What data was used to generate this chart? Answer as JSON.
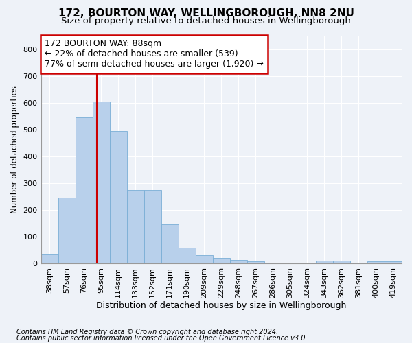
{
  "title1": "172, BOURTON WAY, WELLINGBOROUGH, NN8 2NU",
  "title2": "Size of property relative to detached houses in Wellingborough",
  "xlabel": "Distribution of detached houses by size in Wellingborough",
  "ylabel": "Number of detached properties",
  "footnote1": "Contains HM Land Registry data © Crown copyright and database right 2024.",
  "footnote2": "Contains public sector information licensed under the Open Government Licence v3.0.",
  "bin_labels": [
    "38sqm",
    "57sqm",
    "76sqm",
    "95sqm",
    "114sqm",
    "133sqm",
    "152sqm",
    "171sqm",
    "190sqm",
    "209sqm",
    "229sqm",
    "248sqm",
    "267sqm",
    "286sqm",
    "305sqm",
    "324sqm",
    "343sqm",
    "362sqm",
    "381sqm",
    "400sqm",
    "419sqm"
  ],
  "bar_values": [
    35,
    245,
    545,
    605,
    495,
    275,
    275,
    145,
    60,
    30,
    20,
    13,
    8,
    3,
    3,
    3,
    10,
    10,
    3,
    7,
    7
  ],
  "bar_color": "#b8d0eb",
  "bar_edge_color": "#7aaed6",
  "vline_color": "#cc0000",
  "vline_x_index": 2.74,
  "annotation_line1": "172 BOURTON WAY: 88sqm",
  "annotation_line2": "← 22% of detached houses are smaller (539)",
  "annotation_line3": "77% of semi-detached houses are larger (1,920) →",
  "annotation_box_color": "#ffffff",
  "annotation_box_edge": "#cc0000",
  "ylim": [
    0,
    850
  ],
  "yticks": [
    0,
    100,
    200,
    300,
    400,
    500,
    600,
    700,
    800
  ],
  "background_color": "#eef2f8",
  "grid_color": "#ffffff",
  "title1_fontsize": 11,
  "title2_fontsize": 9.5,
  "xlabel_fontsize": 9,
  "ylabel_fontsize": 8.5,
  "tick_fontsize": 8,
  "annotation_fontsize": 9,
  "footnote_fontsize": 7
}
